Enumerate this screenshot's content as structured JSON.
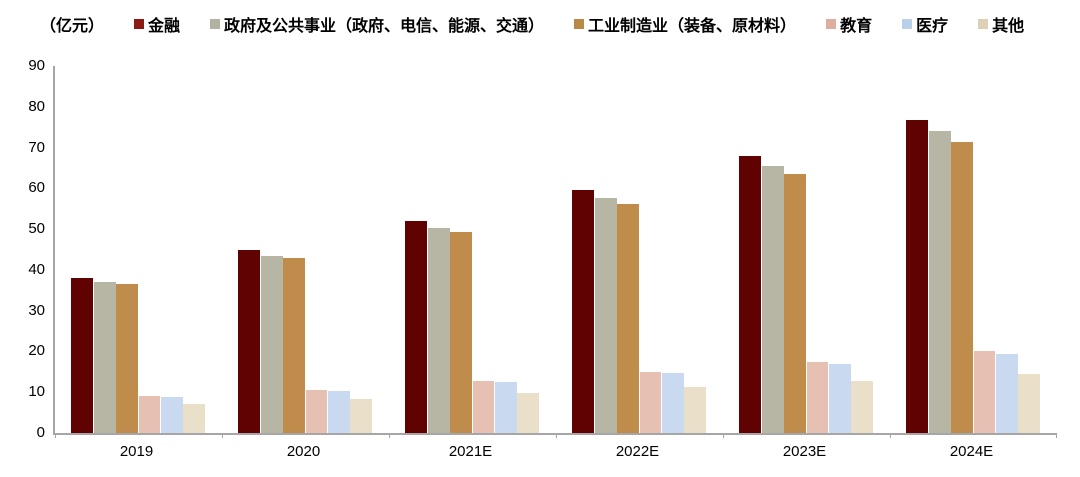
{
  "unit_label": "（亿元）",
  "chart_data": {
    "type": "bar",
    "title": "",
    "unit_label": "（亿元）",
    "categories": [
      "2019",
      "2020",
      "2021E",
      "2022E",
      "2023E",
      "2024E"
    ],
    "series": [
      {
        "id": "finance",
        "name": "金融",
        "color": "#5F0201",
        "legend_color": "#8B1A12",
        "values": [
          38.0,
          44.8,
          51.9,
          59.5,
          67.9,
          76.8
        ]
      },
      {
        "id": "government-utilities",
        "name": "政府及公共事业（政府、电信、能源、交通）",
        "color": "#B7B5A4",
        "legend_color": "#B3B1A0",
        "values": [
          37.0,
          43.5,
          50.3,
          57.6,
          65.5,
          74.0
        ]
      },
      {
        "id": "industrial-manufacturing",
        "name": "工业制造业（装备、原材料）",
        "color": "#BF8C4C",
        "legend_color": "#B98A43",
        "values": [
          36.6,
          42.8,
          49.4,
          56.2,
          63.5,
          71.4
        ]
      },
      {
        "id": "education",
        "name": "教育",
        "color": "#E7C0B4",
        "legend_color": "#DFACA0",
        "values": [
          9.0,
          10.6,
          12.7,
          14.9,
          17.3,
          20.0
        ]
      },
      {
        "id": "healthcare",
        "name": "医疗",
        "color": "#C9DAF0",
        "legend_color": "#B9CFEC",
        "values": [
          8.8,
          10.4,
          12.5,
          14.6,
          16.9,
          19.4
        ]
      },
      {
        "id": "other",
        "name": "其他",
        "color": "#EADFC9",
        "legend_color": "#DDD0B5",
        "values": [
          7.2,
          8.4,
          9.8,
          11.2,
          12.8,
          14.4
        ]
      }
    ],
    "ylim": [
      0,
      90
    ],
    "yticks": [
      0,
      10,
      20,
      30,
      40,
      50,
      60,
      70,
      80,
      90
    ],
    "grid": false,
    "legend_position": "top",
    "axis_color": "#A6A6A6"
  }
}
